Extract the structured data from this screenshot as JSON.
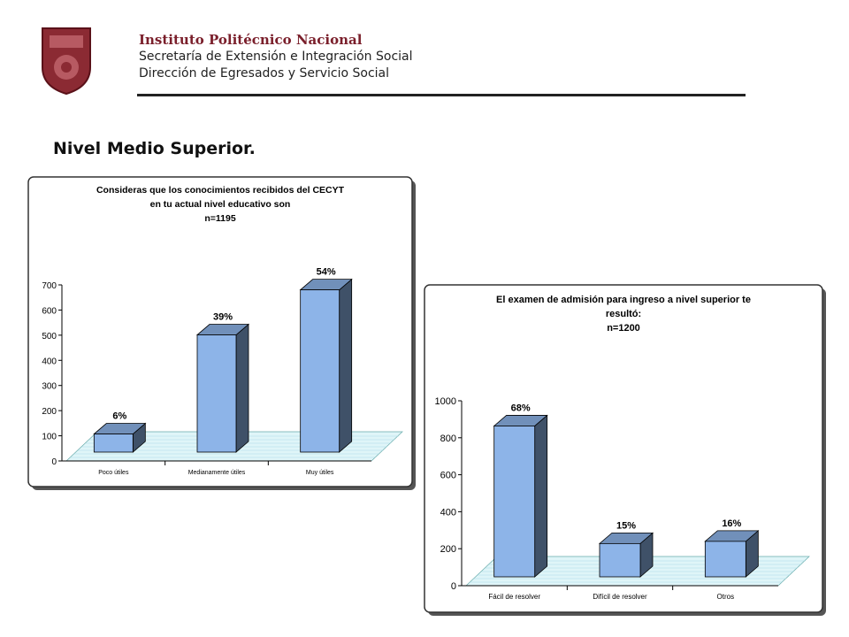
{
  "header": {
    "organization": "Instituto Politécnico Nacional",
    "department": "Secretaría de Extensión e Integración Social",
    "office": "Dirección de Egresados y Servicio Social"
  },
  "section_title": "Nivel Medio Superior.",
  "chart_data": [
    {
      "type": "bar",
      "title": [
        "Consideras que los conocimientos recibidos del CECYT",
        "en tu actual nivel educativo son"
      ],
      "subtitle": "n=1195",
      "categories": [
        "Poco útiles",
        "Medianamente útiles",
        "Muy útiles"
      ],
      "values": [
        72,
        466,
        645
      ],
      "annotations": [
        "6%",
        "39%",
        "54%"
      ],
      "color": "#8db4e8",
      "ylim": [
        0,
        700
      ],
      "yticks": [
        0,
        100,
        200,
        300,
        400,
        500,
        600,
        700
      ]
    },
    {
      "type": "bar",
      "title": [
        "El examen de admisión para ingreso a nivel superior te",
        "resultó:"
      ],
      "subtitle": "n=1200",
      "categories": [
        "Fácil de resolver",
        "Difícil de resolver",
        "Otros"
      ],
      "values": [
        816,
        180,
        192
      ],
      "annotations": [
        "68%",
        "15%",
        "16%"
      ],
      "color": "#8db4e8",
      "ylim": [
        0,
        1000
      ],
      "yticks": [
        0,
        200,
        400,
        600,
        800,
        1000
      ]
    }
  ]
}
